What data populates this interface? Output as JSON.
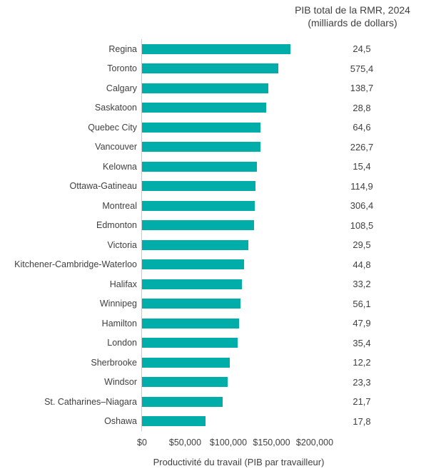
{
  "header": {
    "line1": "PIB total de la RMR, 2024",
    "line2": "(milliards de dollars)"
  },
  "chart_data": {
    "type": "bar",
    "orientation": "horizontal",
    "title": "PIB total de la RMR, 2024 (milliards de dollars)",
    "xlabel": "Productivité du travail (PIB par travailleur)",
    "xlim": [
      0,
      200000
    ],
    "grid": false,
    "bar_color": "#00ada8",
    "axis_line_color": "#c9c9c9",
    "text_color": "#404040",
    "x_ticks": [
      {
        "label": "$0",
        "value": 0
      },
      {
        "label": "$50,000",
        "value": 50000
      },
      {
        "label": "$100,000",
        "value": 100000
      },
      {
        "label": "$150,000",
        "value": 150000
      },
      {
        "label": "$200,000",
        "value": 200000
      }
    ],
    "categories": [
      "Regina",
      "Toronto",
      "Calgary",
      "Saskatoon",
      "Quebec City",
      "Vancouver",
      "Kelowna",
      "Ottawa-Gatineau",
      "Montreal",
      "Edmonton",
      "Victoria",
      "Kitchener-Cambridge-Waterloo",
      "Halifax",
      "Winnipeg",
      "Hamilton",
      "London",
      "Sherbrooke",
      "Windsor",
      "St. Catharines–Niagara",
      "Oshawa"
    ],
    "series": [
      {
        "name": "Productivité du travail (PIB par travailleur)",
        "values": [
          172000,
          158000,
          146000,
          144000,
          137500,
          137300,
          133000,
          131000,
          130500,
          130000,
          123500,
          118500,
          116000,
          114000,
          112000,
          111000,
          102000,
          99500,
          93500,
          73500
        ]
      },
      {
        "name": "PIB total de la RMR, 2024 (milliards de dollars)",
        "labels": [
          "24,5",
          "575,4",
          "138,7",
          "28,8",
          "64,6",
          "226,7",
          "15,4",
          "114,9",
          "306,4",
          "108,5",
          "29,5",
          "44,8",
          "33,2",
          "56,1",
          "47,9",
          "35,4",
          "12,2",
          "23,3",
          "21,7",
          "17,8"
        ],
        "values": [
          24.5,
          575.4,
          138.7,
          28.8,
          64.6,
          226.7,
          15.4,
          114.9,
          306.4,
          108.5,
          29.5,
          44.8,
          33.2,
          56.1,
          47.9,
          35.4,
          12.2,
          23.3,
          21.7,
          17.8
        ]
      }
    ]
  }
}
